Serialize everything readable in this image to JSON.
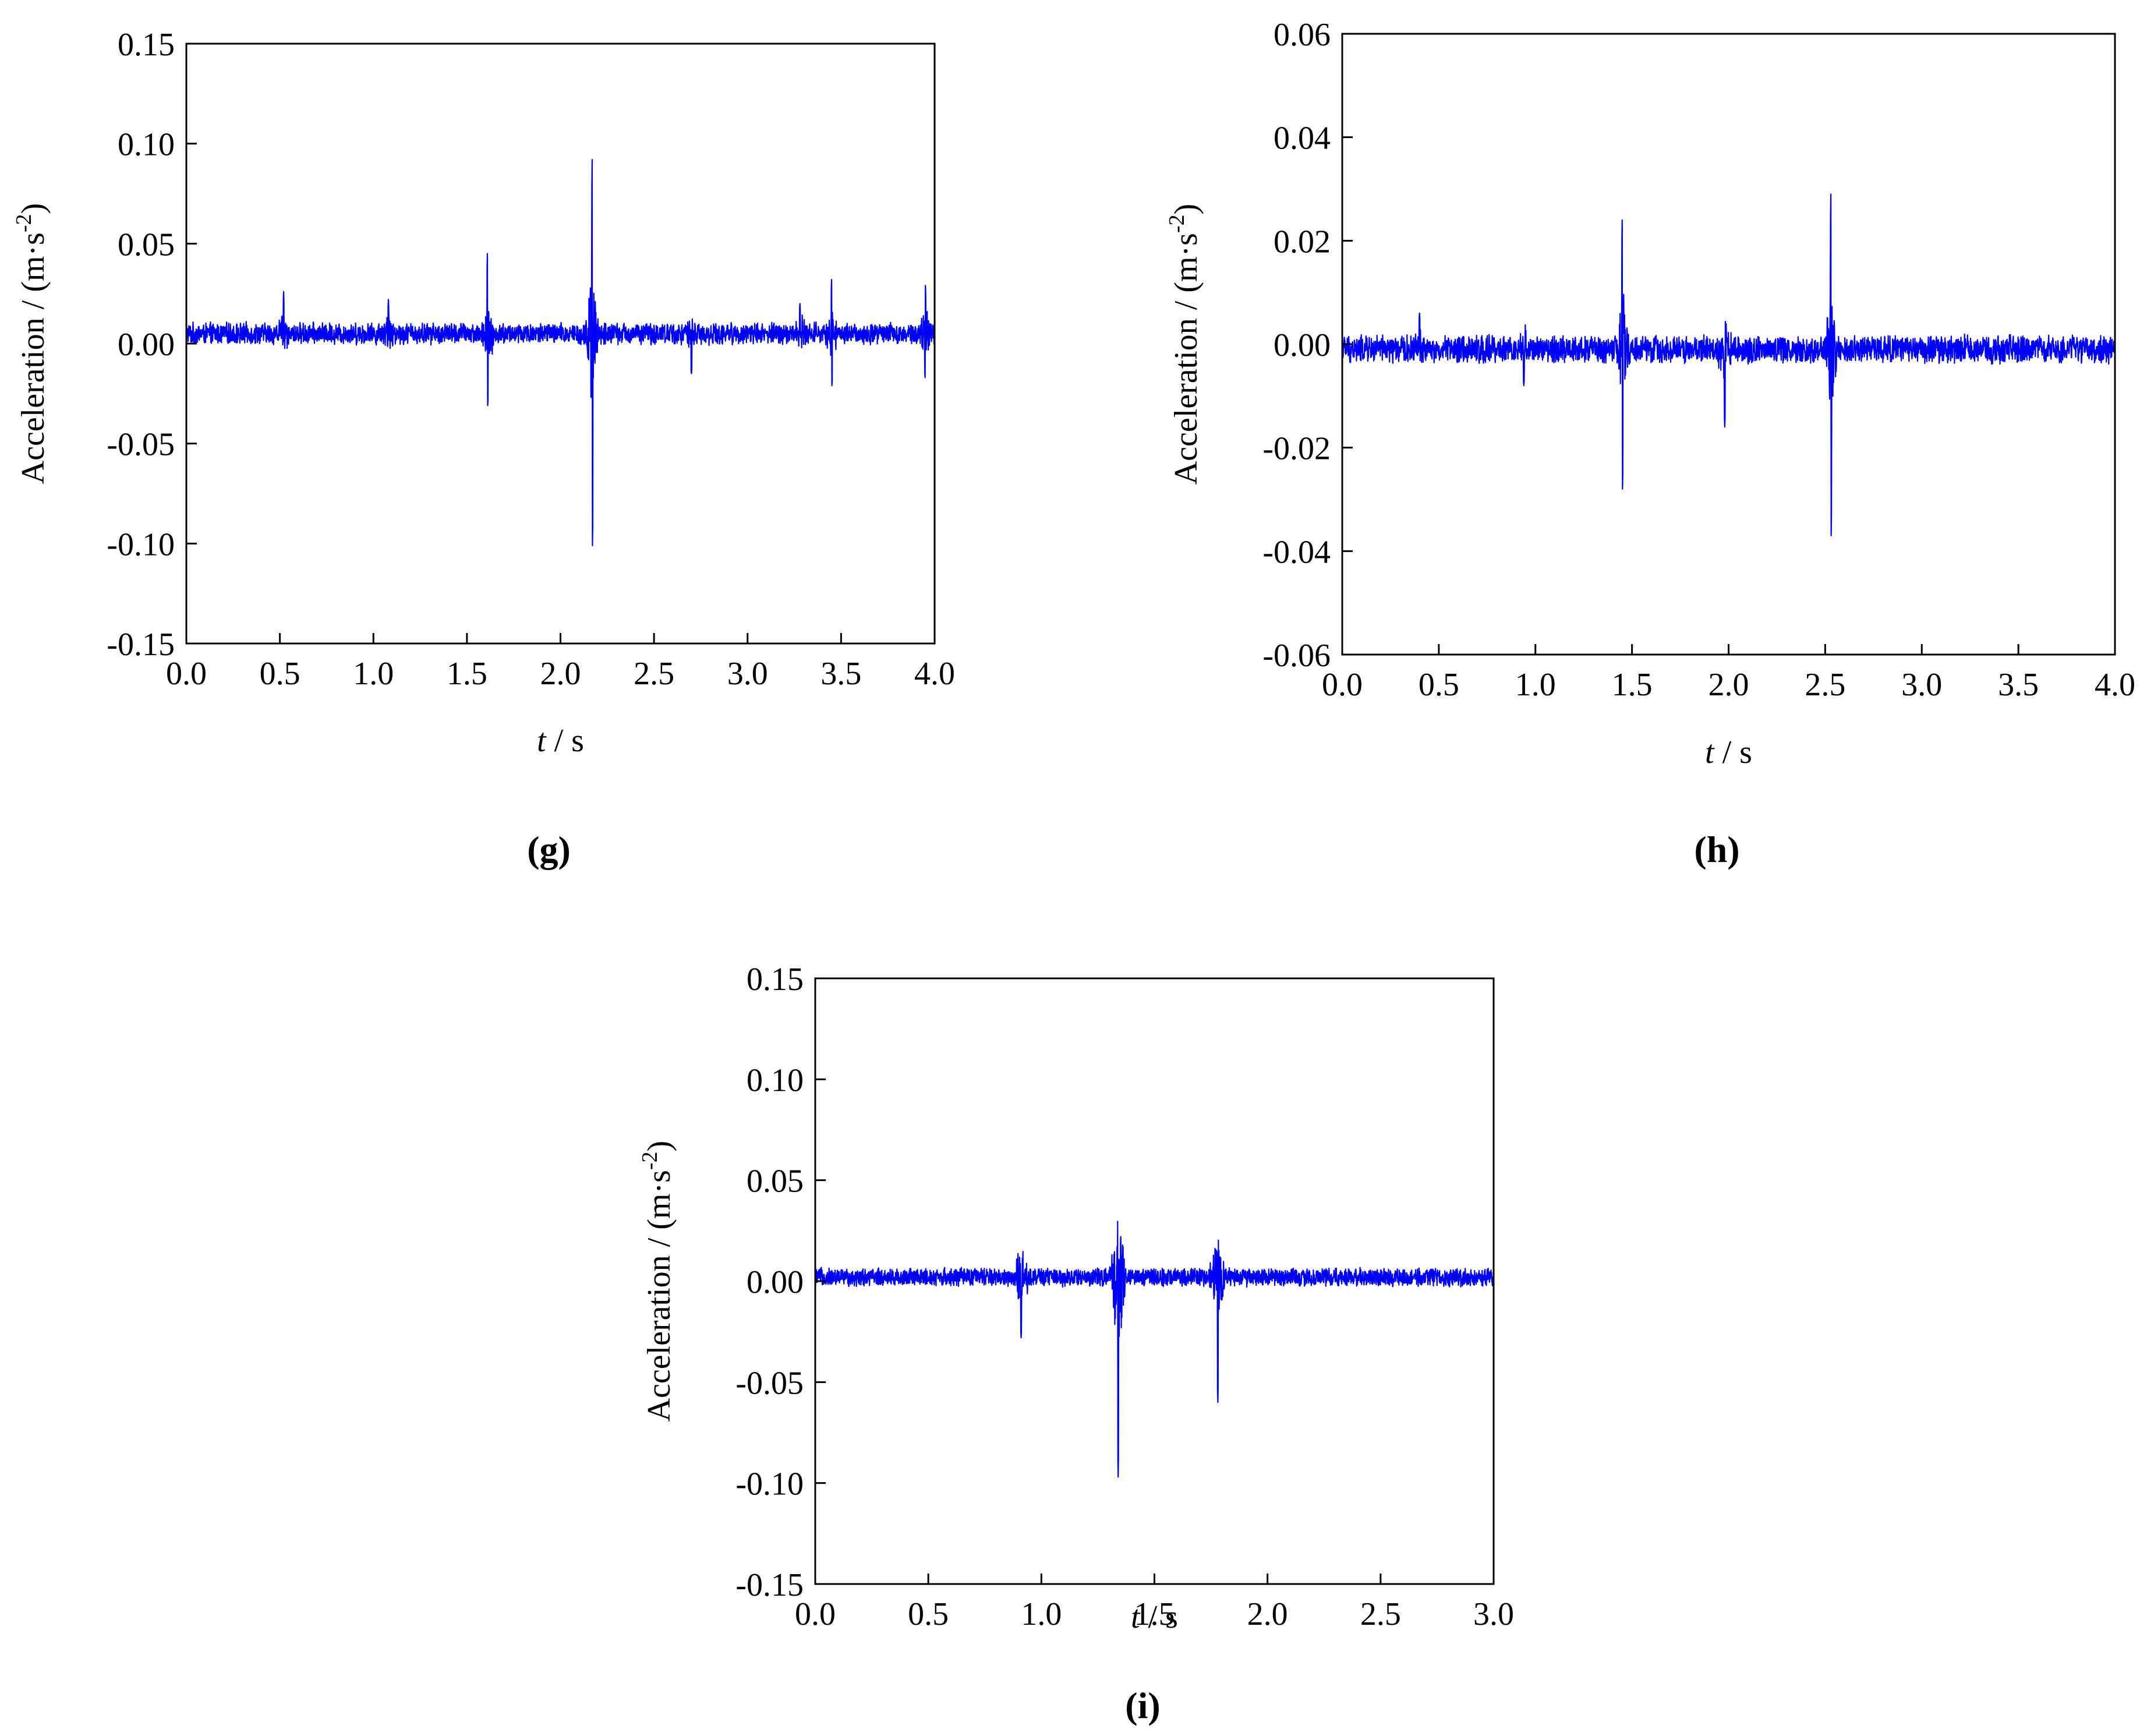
{
  "chart_data": [
    {
      "type": "line",
      "panel_label": "g",
      "xlabel": {
        "var": "t",
        "unit": " / s"
      },
      "ylabel": {
        "text": "Acceleration / (m·s",
        "sup": "-2",
        "close": ")"
      },
      "xlim": [
        0.0,
        4.0
      ],
      "ylim": [
        -0.15,
        0.15
      ],
      "xticks": [
        "0.0",
        "0.5",
        "1.0",
        "1.5",
        "2.0",
        "2.5",
        "3.0",
        "3.5",
        "4.0"
      ],
      "yticks": [
        "-0.15",
        "-0.10",
        "-0.05",
        "0.00",
        "0.05",
        "0.10",
        "0.15"
      ],
      "series_color": "#0000ff",
      "baseline": 0.005,
      "noise_amplitude": 0.006,
      "peaks": [
        {
          "t": 0.52,
          "max": 0.026,
          "min": -0.016
        },
        {
          "t": 1.08,
          "max": 0.022,
          "min": -0.009
        },
        {
          "t": 1.61,
          "max": 0.045,
          "min": -0.031
        },
        {
          "t": 2.17,
          "max": 0.092,
          "min": -0.101
        },
        {
          "t": 2.7,
          "max": 0.016,
          "min": -0.015
        },
        {
          "t": 3.28,
          "max": 0.02,
          "min": -0.01
        },
        {
          "t": 3.45,
          "max": 0.032,
          "min": -0.021
        },
        {
          "t": 3.95,
          "max": 0.029,
          "min": -0.017
        }
      ]
    },
    {
      "type": "line",
      "panel_label": "h",
      "xlabel": {
        "var": "t",
        "unit": " / s"
      },
      "ylabel": {
        "text": "Acceleration / (m·s",
        "sup": "-2",
        "close": ")"
      },
      "xlim": [
        0.0,
        4.0
      ],
      "ylim": [
        -0.06,
        0.06
      ],
      "xticks": [
        "0.0",
        "0.5",
        "1.0",
        "1.5",
        "2.0",
        "2.5",
        "3.0",
        "3.5",
        "4.0"
      ],
      "yticks": [
        "-0.06",
        "-0.04",
        "-0.02",
        "0.00",
        "0.02",
        "0.04",
        "0.06"
      ],
      "series_color": "#0000ff",
      "baseline": -0.001,
      "noise_amplitude": 0.003,
      "peaks": [
        {
          "t": 0.4,
          "max": 0.006,
          "min": -0.005
        },
        {
          "t": 0.94,
          "max": 0.004,
          "min": -0.008
        },
        {
          "t": 1.45,
          "max": 0.024,
          "min": -0.028
        },
        {
          "t": 1.98,
          "max": 0.019,
          "min": -0.016
        },
        {
          "t": 2.53,
          "max": 0.029,
          "min": -0.037
        }
      ]
    },
    {
      "type": "line",
      "panel_label": "i",
      "xlabel": {
        "var": "t",
        "unit": " / s"
      },
      "ylabel": {
        "text": "Acceleration / (m·s",
        "sup": "-2",
        "close": ")"
      },
      "xlim": [
        0.0,
        3.0
      ],
      "ylim": [
        -0.15,
        0.15
      ],
      "xticks": [
        "0.0",
        "0.5",
        "1.0",
        "1.5",
        "2.0",
        "2.5",
        "3.0"
      ],
      "yticks": [
        "-0.15",
        "-0.10",
        "-0.05",
        "0.00",
        "0.05",
        "0.10",
        "0.15"
      ],
      "series_color": "#0000ff",
      "baseline": 0.002,
      "noise_amplitude": 0.005,
      "peaks": [
        {
          "t": 0.91,
          "max": 0.041,
          "min": -0.028
        },
        {
          "t": 1.34,
          "max": 0.057,
          "min": -0.097
        },
        {
          "t": 1.78,
          "max": 0.046,
          "min": -0.06
        }
      ]
    }
  ]
}
